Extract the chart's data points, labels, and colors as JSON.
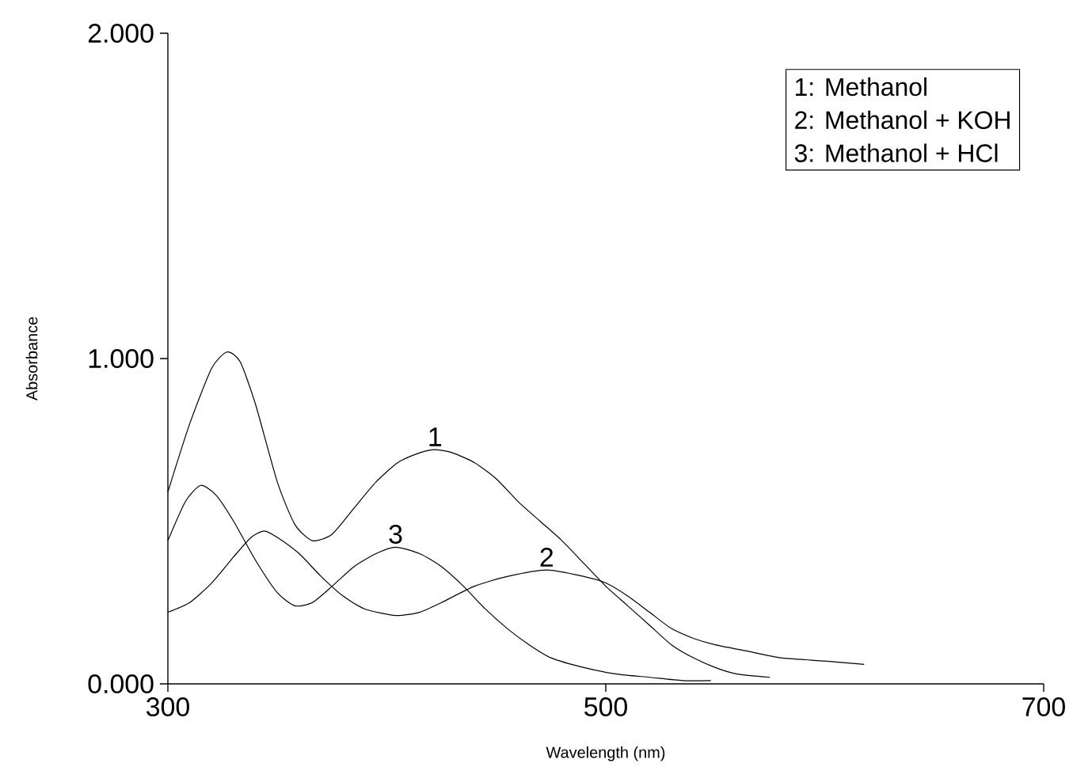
{
  "chart_data": {
    "type": "line",
    "xlabel": "Wavelength (nm)",
    "ylabel": "Absorbance",
    "xlim": [
      300,
      700
    ],
    "xticks": [
      300,
      500,
      700
    ],
    "ylim": [
      0,
      2
    ],
    "yticks": [
      {
        "value": 0,
        "label": "0.000"
      },
      {
        "value": 1,
        "label": "1.000"
      },
      {
        "value": 2,
        "label": "2.000"
      }
    ],
    "grid": false,
    "marker": "none",
    "line_style": "solid",
    "series": [
      {
        "name": "1",
        "color": "#000000",
        "x": [
          300,
          310,
          320,
          327,
          333,
          340,
          350,
          358,
          366,
          375,
          385,
          395,
          405,
          415,
          422,
          430,
          440,
          450,
          460,
          470,
          480,
          490,
          500,
          510,
          520,
          530,
          540,
          550,
          560,
          575
        ],
        "values": [
          0.59,
          0.8,
          0.97,
          1.02,
          0.99,
          0.86,
          0.62,
          0.49,
          0.44,
          0.46,
          0.54,
          0.62,
          0.68,
          0.71,
          0.72,
          0.71,
          0.68,
          0.63,
          0.56,
          0.5,
          0.44,
          0.37,
          0.3,
          0.24,
          0.18,
          0.12,
          0.08,
          0.05,
          0.03,
          0.02
        ]
      },
      {
        "name": "2",
        "color": "#000000",
        "x": [
          300,
          310,
          320,
          330,
          338,
          344,
          350,
          360,
          370,
          380,
          390,
          404,
          415,
          425,
          440,
          455,
          473,
          490,
          500,
          510,
          520,
          530,
          540,
          550,
          565,
          580,
          600,
          618
        ],
        "values": [
          0.22,
          0.25,
          0.31,
          0.39,
          0.45,
          0.47,
          0.45,
          0.4,
          0.33,
          0.27,
          0.23,
          0.21,
          0.22,
          0.25,
          0.3,
          0.33,
          0.35,
          0.33,
          0.31,
          0.27,
          0.22,
          0.17,
          0.14,
          0.12,
          0.1,
          0.08,
          0.07,
          0.06
        ]
      },
      {
        "name": "3",
        "color": "#000000",
        "x": [
          300,
          308,
          315,
          322,
          330,
          340,
          350,
          358,
          366,
          375,
          385,
          395,
          404,
          415,
          425,
          435,
          445,
          455,
          465,
          475,
          490,
          505,
          520,
          535,
          548
        ],
        "values": [
          0.44,
          0.56,
          0.61,
          0.58,
          0.5,
          0.38,
          0.28,
          0.24,
          0.25,
          0.3,
          0.36,
          0.4,
          0.42,
          0.4,
          0.36,
          0.3,
          0.23,
          0.17,
          0.12,
          0.08,
          0.05,
          0.03,
          0.02,
          0.01,
          0.01
        ]
      }
    ],
    "annotations": [
      "1: Methanol",
      "2: Methanol + KOH",
      "3: Methanol + HCl"
    ]
  }
}
